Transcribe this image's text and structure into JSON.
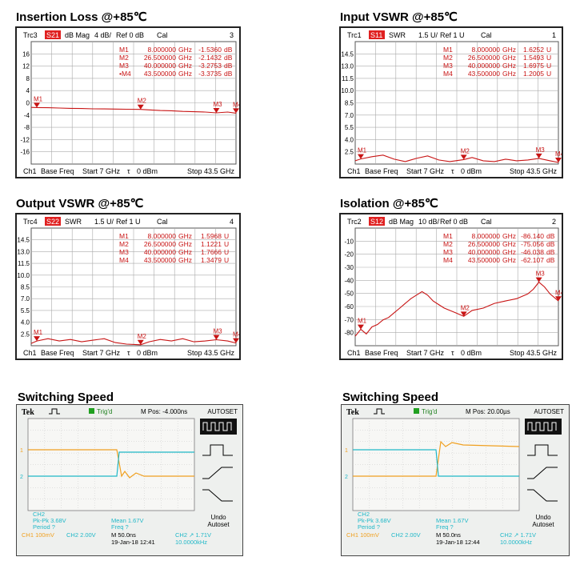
{
  "colors": {
    "trace": "#c81414",
    "grid": "#555555",
    "ch1": "#f0a020",
    "ch2": "#20b8c8",
    "tag": "#e02020"
  },
  "panels": [
    {
      "title": "Insertion Loss @+85℃",
      "header": {
        "trc": "Trc3",
        "param": "S21",
        "fmt": "dB Mag",
        "scale": "4 dB/",
        "ref": "Ref 0 dB",
        "cal": "Cal",
        "num": "3"
      },
      "footer": {
        "ch": "Ch1",
        "base": "Base Freq",
        "start": "Start  7 GHz",
        "tau": "τ",
        "pwr": "0 dBm",
        "stop": "Stop  43.5 GHz"
      },
      "markers": [
        {
          "name": "M1",
          "freq": "8.000000",
          "unit": "GHz",
          "value": "-1.5360",
          "vunit": "dB"
        },
        {
          "name": "M2",
          "freq": "26.500000",
          "unit": "GHz",
          "value": "-2.1432",
          "vunit": "dB"
        },
        {
          "name": "M3",
          "freq": "40.000000",
          "unit": "GHz",
          "value": "-3.2753",
          "vunit": "dB"
        },
        {
          "name": "•M4",
          "freq": "43.500000",
          "unit": "GHz",
          "value": "-3.3735",
          "vunit": "dB"
        }
      ],
      "chart_data": {
        "type": "line",
        "xlim": [
          7,
          43.5
        ],
        "ylim": [
          -20,
          20
        ],
        "yticks": [
          "16",
          "12",
          "8",
          "4",
          "0",
          "-4",
          "-8",
          "-12",
          "-16"
        ],
        "series": [
          {
            "x": [
              7,
              8,
              10,
              12,
              14,
              16,
              18,
              20,
              22,
              24,
              26.5,
              28,
              30,
              32,
              34,
              36,
              38,
              40,
              42,
              43.5
            ],
            "y": [
              -1.5,
              -1.54,
              -1.6,
              -1.7,
              -1.8,
              -1.85,
              -1.95,
              -2.0,
              -2.05,
              -2.1,
              -2.14,
              -2.3,
              -2.5,
              -2.6,
              -2.8,
              -2.9,
              -3.0,
              -3.28,
              -3.0,
              -3.37
            ]
          }
        ],
        "marker_points": [
          {
            "label": "M1",
            "x": 8,
            "y": -1.536
          },
          {
            "label": "M2",
            "x": 26.5,
            "y": -2.1432
          },
          {
            "label": "M3",
            "x": 40,
            "y": -3.2753
          },
          {
            "label": "M4",
            "x": 43.5,
            "y": -3.3735
          }
        ]
      }
    },
    {
      "title": "Input VSWR @+85℃",
      "header": {
        "trc": "Trc1",
        "param": "S11",
        "fmt": "SWR",
        "scale": "1.5 U/",
        "ref": "Ref 1 U",
        "cal": "Cal",
        "num": "1"
      },
      "footer": {
        "ch": "Ch1",
        "base": "Base Freq",
        "start": "Start  7 GHz",
        "tau": "τ",
        "pwr": "0 dBm",
        "stop": "Stop  43.5 GHz"
      },
      "markers": [
        {
          "name": "M1",
          "freq": "8.000000",
          "unit": "GHz",
          "value": "1.6252",
          "vunit": "U"
        },
        {
          "name": "M2",
          "freq": "26.500000",
          "unit": "GHz",
          "value": "1.5493",
          "vunit": "U"
        },
        {
          "name": "M3",
          "freq": "40.000000",
          "unit": "GHz",
          "value": "1.6975",
          "vunit": "U"
        },
        {
          "name": "M4",
          "freq": "43.500000",
          "unit": "GHz",
          "value": "1.2005",
          "vunit": "U"
        }
      ],
      "chart_data": {
        "type": "line",
        "xlim": [
          7,
          43.5
        ],
        "ylim": [
          1,
          16
        ],
        "yticks": [
          "14.5",
          "13.0",
          "11.5",
          "10.0",
          "8.5",
          "7.0",
          "5.5",
          "4.0",
          "2.5"
        ],
        "series": [
          {
            "x": [
              7,
              8,
              10,
              12,
              14,
              16,
              18,
              20,
              22,
              24,
              26.5,
              28,
              30,
              32,
              34,
              36,
              38,
              40,
              42,
              43.5
            ],
            "y": [
              1.4,
              1.63,
              1.9,
              2.1,
              1.6,
              1.3,
              1.7,
              2.0,
              1.5,
              1.3,
              1.55,
              1.8,
              1.4,
              1.3,
              1.6,
              1.4,
              1.5,
              1.7,
              1.4,
              1.2
            ]
          }
        ],
        "marker_points": [
          {
            "label": "M1",
            "x": 8,
            "y": 1.6252
          },
          {
            "label": "M2",
            "x": 26.5,
            "y": 1.5493
          },
          {
            "label": "M3",
            "x": 40,
            "y": 1.6975
          },
          {
            "label": "M4",
            "x": 43.5,
            "y": 1.2005
          }
        ]
      }
    },
    {
      "title": "Output VSWR @+85℃",
      "header": {
        "trc": "Trc4",
        "param": "S22",
        "fmt": "SWR",
        "scale": "1.5 U/",
        "ref": "Ref 1 U",
        "cal": "Cal",
        "num": "4"
      },
      "footer": {
        "ch": "Ch1",
        "base": "Base Freq",
        "start": "Start  7 GHz",
        "tau": "τ",
        "pwr": "0 dBm",
        "stop": "Stop  43.5 GHz"
      },
      "markers": [
        {
          "name": "M1",
          "freq": "8.000000",
          "unit": "GHz",
          "value": "1.5968",
          "vunit": "U"
        },
        {
          "name": "M2",
          "freq": "26.500000",
          "unit": "GHz",
          "value": "1.1221",
          "vunit": "U"
        },
        {
          "name": "M3",
          "freq": "40.000000",
          "unit": "GHz",
          "value": "1.7666",
          "vunit": "U"
        },
        {
          "name": "M4",
          "freq": "43.500000",
          "unit": "GHz",
          "value": "1.3479",
          "vunit": "U"
        }
      ],
      "chart_data": {
        "type": "line",
        "xlim": [
          7,
          43.5
        ],
        "ylim": [
          1,
          16
        ],
        "yticks": [
          "14.5",
          "13.0",
          "11.5",
          "10.0",
          "8.5",
          "7.0",
          "5.5",
          "4.0",
          "2.5"
        ],
        "series": [
          {
            "x": [
              7,
              8,
              10,
              12,
              14,
              16,
              18,
              20,
              22,
              24,
              26.5,
              28,
              30,
              32,
              34,
              36,
              38,
              40,
              42,
              43.5
            ],
            "y": [
              1.3,
              1.6,
              1.9,
              1.6,
              1.8,
              1.5,
              1.7,
              1.9,
              1.4,
              1.2,
              1.12,
              1.5,
              1.8,
              1.6,
              1.9,
              1.5,
              1.6,
              1.77,
              1.6,
              1.35
            ]
          }
        ],
        "marker_points": [
          {
            "label": "M1",
            "x": 8,
            "y": 1.5968
          },
          {
            "label": "M2",
            "x": 26.5,
            "y": 1.1221
          },
          {
            "label": "M3",
            "x": 40,
            "y": 1.7666
          },
          {
            "label": "M4",
            "x": 43.5,
            "y": 1.3479
          }
        ]
      }
    },
    {
      "title": "Isolation @+85℃",
      "header": {
        "trc": "Trc2",
        "param": "S12",
        "fmt": "dB Mag",
        "scale": "10 dB/",
        "ref": "Ref 0 dB",
        "cal": "Cal",
        "num": "2"
      },
      "footer": {
        "ch": "Ch1",
        "base": "Base Freq",
        "start": "Start  7 GHz",
        "tau": "τ",
        "pwr": "0 dBm",
        "stop": "Stop  43.5 GHz"
      },
      "markers": [
        {
          "name": "M1",
          "freq": "8.000000",
          "unit": "GHz",
          "value": "-86.140",
          "vunit": "dB"
        },
        {
          "name": "M2",
          "freq": "26.500000",
          "unit": "GHz",
          "value": "-75.056",
          "vunit": "dB"
        },
        {
          "name": "M3",
          "freq": "40.000000",
          "unit": "GHz",
          "value": "-46.038",
          "vunit": "dB"
        },
        {
          "name": "M4",
          "freq": "43.500000",
          "unit": "GHz",
          "value": "-62.107",
          "vunit": "dB"
        }
      ],
      "chart_data": {
        "type": "line",
        "xlim": [
          7,
          43.5
        ],
        "ylim": [
          -100,
          0
        ],
        "yticks": [
          "-10",
          "-20",
          "-30",
          "-40",
          "-50",
          "-60",
          "-70",
          "-80"
        ],
        "series": [
          {
            "x": [
              7,
              8,
              9,
              10,
              11,
              12,
              13,
              14,
              15,
              16,
              17,
              18,
              19,
              20,
              21,
              22,
              23,
              24,
              25,
              26.5,
              28,
              30,
              32,
              34,
              36,
              38,
              39,
              40,
              41,
              42,
              43.5
            ],
            "y": [
              -92,
              -86,
              -90,
              -84,
              -82,
              -78,
              -76,
              -72,
              -68,
              -64,
              -60,
              -57,
              -54,
              -57,
              -62,
              -65,
              -68,
              -70,
              -72,
              -75,
              -70,
              -68,
              -64,
              -62,
              -60,
              -56,
              -52,
              -46,
              -50,
              -56,
              -62
            ]
          }
        ],
        "marker_points": [
          {
            "label": "M1",
            "x": 8,
            "y": -86.14
          },
          {
            "label": "M2",
            "x": 26.5,
            "y": -75.056
          },
          {
            "label": "M3",
            "x": 40,
            "y": -46.038
          },
          {
            "label": "M4",
            "x": 43.5,
            "y": -62.107
          }
        ]
      }
    }
  ],
  "scopes": [
    {
      "title": "Switching Speed",
      "brand": "Tek",
      "trig": "Trig'd",
      "mpos": "M Pos: -4.000ns",
      "autoset": "AUTOSET",
      "ch2_label": "CH2",
      "pkpk": "Pk-Pk 3.68V",
      "period": "Period ?",
      "mean": "Mean 1.67V",
      "freq": "Freq ?",
      "undo": "Undo",
      "undo2": "Autoset",
      "ch1_scale": "CH1  100mV",
      "ch2_scale": "CH2  2.00V",
      "time_scale": "M 50.0ns",
      "trig_info": "CH2 ↗ 1.71V",
      "date": "19-Jan-18 12:41",
      "tfreq": "10.0000kHz",
      "edge": "fall"
    },
    {
      "title": "Switching Speed",
      "brand": "Tek",
      "trig": "Trig'd",
      "mpos": "M Pos: 20.00µs",
      "autoset": "AUTOSET",
      "ch2_label": "CH2",
      "pkpk": "Pk-Pk 3.68V",
      "period": "Period ?",
      "mean": "Mean 1.67V",
      "freq": "Freq ?",
      "undo": "Undo",
      "undo2": "Autoset",
      "ch1_scale": "CH1  100mV",
      "ch2_scale": "CH2  2.00V",
      "time_scale": "M 50.0ns",
      "trig_info": "CH2 ↗ 1.71V",
      "date": "19-Jan-18 12:44",
      "tfreq": "10.0000kHz",
      "edge": "rise"
    }
  ]
}
